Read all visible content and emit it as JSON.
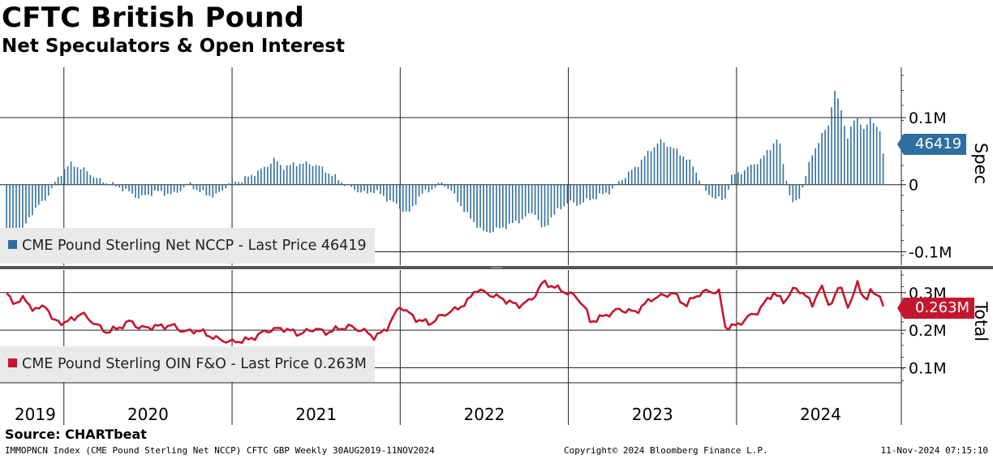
{
  "title": "CFTC British Pound",
  "subtitle": "Net Speculators & Open Interest",
  "source": "Source: CHARTbeat",
  "footer": {
    "left": "IMMOPNCN Index (CME Pound Sterling Net NCCP) CFTC GBP  Weekly 30AUG2019-11NOV2024",
    "center": "Copyright© 2024 Bloomberg Finance L.P.",
    "right": "11-Nov-2024 07:15:10"
  },
  "colors": {
    "spec": "#2f6ea1",
    "total": "#c4172f"
  },
  "chart_data": [
    {
      "type": "bar",
      "name": "spec-panel",
      "side_label": "Spec",
      "legend": "CME Pound Sterling Net NCCP - Last Price 46419",
      "last_value_label": "46419",
      "ytick_labels": [
        "0.1M",
        "0",
        "-0.1M"
      ],
      "yticks": [
        100000,
        0,
        -100000
      ],
      "ylim": [
        -120000,
        175000
      ],
      "x_start": 2019.66,
      "x_step_weeks": 1,
      "anchors": [
        [
          2019.66,
          -90000
        ],
        [
          2019.7,
          -82000
        ],
        [
          2019.75,
          -70000
        ],
        [
          2019.82,
          -38000
        ],
        [
          2019.88,
          -25000
        ],
        [
          2019.92,
          -10000
        ],
        [
          2019.96,
          8000
        ],
        [
          2020.0,
          22000
        ],
        [
          2020.05,
          32000
        ],
        [
          2020.1,
          24000
        ],
        [
          2020.14,
          20000
        ],
        [
          2020.2,
          8000
        ],
        [
          2020.27,
          2000
        ],
        [
          2020.35,
          -6000
        ],
        [
          2020.45,
          -20000
        ],
        [
          2020.55,
          -10000
        ],
        [
          2020.65,
          -15000
        ],
        [
          2020.75,
          2000
        ],
        [
          2020.8,
          -10000
        ],
        [
          2020.9,
          -18000
        ],
        [
          2021.0,
          6000
        ],
        [
          2021.05,
          5000
        ],
        [
          2021.1,
          12000
        ],
        [
          2021.2,
          26000
        ],
        [
          2021.25,
          38000
        ],
        [
          2021.3,
          26000
        ],
        [
          2021.4,
          32000
        ],
        [
          2021.5,
          30000
        ],
        [
          2021.6,
          14000
        ],
        [
          2021.7,
          -4000
        ],
        [
          2021.8,
          -14000
        ],
        [
          2021.85,
          -8000
        ],
        [
          2021.9,
          -18000
        ],
        [
          2021.95,
          -25000
        ],
        [
          2022.05,
          -44000
        ],
        [
          2022.12,
          -15000
        ],
        [
          2022.2,
          -5000
        ],
        [
          2022.25,
          3000
        ],
        [
          2022.3,
          -8000
        ],
        [
          2022.4,
          -45000
        ],
        [
          2022.5,
          -72000
        ],
        [
          2022.6,
          -65000
        ],
        [
          2022.7,
          -55000
        ],
        [
          2022.8,
          -40000
        ],
        [
          2022.85,
          -70000
        ],
        [
          2022.9,
          -48000
        ],
        [
          2023.0,
          -25000
        ],
        [
          2023.05,
          -30000
        ],
        [
          2023.15,
          -20000
        ],
        [
          2023.25,
          -10000
        ],
        [
          2023.3,
          4000
        ],
        [
          2023.4,
          26000
        ],
        [
          2023.5,
          55000
        ],
        [
          2023.55,
          65000
        ],
        [
          2023.62,
          55000
        ],
        [
          2023.7,
          40000
        ],
        [
          2023.75,
          25000
        ],
        [
          2023.82,
          -12000
        ],
        [
          2023.88,
          -20000
        ],
        [
          2023.93,
          -24000
        ],
        [
          2023.97,
          12000
        ],
        [
          2024.05,
          22000
        ],
        [
          2024.15,
          38000
        ],
        [
          2024.2,
          55000
        ],
        [
          2024.25,
          70000
        ],
        [
          2024.3,
          5000
        ],
        [
          2024.33,
          -30000
        ],
        [
          2024.37,
          -22000
        ],
        [
          2024.4,
          2000
        ],
        [
          2024.45,
          45000
        ],
        [
          2024.5,
          70000
        ],
        [
          2024.55,
          90000
        ],
        [
          2024.58,
          143000
        ],
        [
          2024.62,
          115000
        ],
        [
          2024.66,
          70000
        ],
        [
          2024.7,
          95000
        ],
        [
          2024.73,
          100000
        ],
        [
          2024.76,
          80000
        ],
        [
          2024.8,
          100000
        ],
        [
          2024.83,
          90000
        ],
        [
          2024.86,
          75000
        ],
        [
          2024.88,
          46419
        ]
      ]
    },
    {
      "type": "line",
      "name": "total-panel",
      "side_label": "Total",
      "legend": "CME Pound Sterling OIN F&O - Last Price 0.263M",
      "last_value_label": "0.263M",
      "ytick_labels": [
        "0.3M",
        "0.2M",
        "0.1M"
      ],
      "yticks": [
        300000,
        200000,
        100000
      ],
      "ylim": [
        60000,
        360000
      ],
      "x_start": 2019.66,
      "x_step_weeks": 1,
      "anchors": [
        [
          2019.66,
          298000
        ],
        [
          2019.7,
          268000
        ],
        [
          2019.75,
          288000
        ],
        [
          2019.8,
          262000
        ],
        [
          2019.85,
          255000
        ],
        [
          2019.9,
          268000
        ],
        [
          2019.93,
          225000
        ],
        [
          2020.0,
          220000
        ],
        [
          2020.05,
          228000
        ],
        [
          2020.1,
          245000
        ],
        [
          2020.15,
          230000
        ],
        [
          2020.2,
          212000
        ],
        [
          2020.25,
          195000
        ],
        [
          2020.32,
          205000
        ],
        [
          2020.4,
          225000
        ],
        [
          2020.45,
          205000
        ],
        [
          2020.55,
          210000
        ],
        [
          2020.65,
          212000
        ],
        [
          2020.72,
          195000
        ],
        [
          2020.8,
          200000
        ],
        [
          2020.9,
          178000
        ],
        [
          2021.0,
          168000
        ],
        [
          2021.1,
          175000
        ],
        [
          2021.15,
          185000
        ],
        [
          2021.2,
          198000
        ],
        [
          2021.3,
          205000
        ],
        [
          2021.4,
          190000
        ],
        [
          2021.5,
          205000
        ],
        [
          2021.55,
          192000
        ],
        [
          2021.6,
          200000
        ],
        [
          2021.7,
          210000
        ],
        [
          2021.8,
          195000
        ],
        [
          2021.85,
          180000
        ],
        [
          2021.92,
          205000
        ],
        [
          2021.96,
          235000
        ],
        [
          2022.0,
          265000
        ],
        [
          2022.05,
          245000
        ],
        [
          2022.1,
          228000
        ],
        [
          2022.18,
          218000
        ],
        [
          2022.25,
          240000
        ],
        [
          2022.33,
          255000
        ],
        [
          2022.4,
          275000
        ],
        [
          2022.45,
          310000
        ],
        [
          2022.5,
          300000
        ],
        [
          2022.6,
          285000
        ],
        [
          2022.7,
          265000
        ],
        [
          2022.78,
          280000
        ],
        [
          2022.85,
          328000
        ],
        [
          2022.95,
          308000
        ],
        [
          2023.05,
          288000
        ],
        [
          2023.1,
          260000
        ],
        [
          2023.13,
          222000
        ],
        [
          2023.2,
          235000
        ],
        [
          2023.3,
          255000
        ],
        [
          2023.4,
          248000
        ],
        [
          2023.45,
          268000
        ],
        [
          2023.5,
          285000
        ],
        [
          2023.57,
          292000
        ],
        [
          2023.62,
          300000
        ],
        [
          2023.7,
          265000
        ],
        [
          2023.75,
          290000
        ],
        [
          2023.83,
          305000
        ],
        [
          2023.9,
          300000
        ],
        [
          2023.93,
          208000
        ],
        [
          2024.0,
          212000
        ],
        [
          2024.08,
          238000
        ],
        [
          2024.13,
          250000
        ],
        [
          2024.18,
          280000
        ],
        [
          2024.22,
          300000
        ],
        [
          2024.28,
          275000
        ],
        [
          2024.34,
          310000
        ],
        [
          2024.4,
          300000
        ],
        [
          2024.45,
          265000
        ],
        [
          2024.5,
          320000
        ],
        [
          2024.55,
          265000
        ],
        [
          2024.62,
          318000
        ],
        [
          2024.67,
          255000
        ],
        [
          2024.72,
          330000
        ],
        [
          2024.77,
          270000
        ],
        [
          2024.8,
          310000
        ],
        [
          2024.85,
          290000
        ],
        [
          2024.88,
          263000
        ]
      ]
    }
  ],
  "x_axis": {
    "tick_labels": [
      "2019",
      "2020",
      "2021",
      "2022",
      "2023",
      "2024"
    ],
    "year_starts": [
      2020,
      2021,
      2022,
      2023,
      2024
    ],
    "xlim": [
      2019.62,
      2024.98
    ]
  }
}
